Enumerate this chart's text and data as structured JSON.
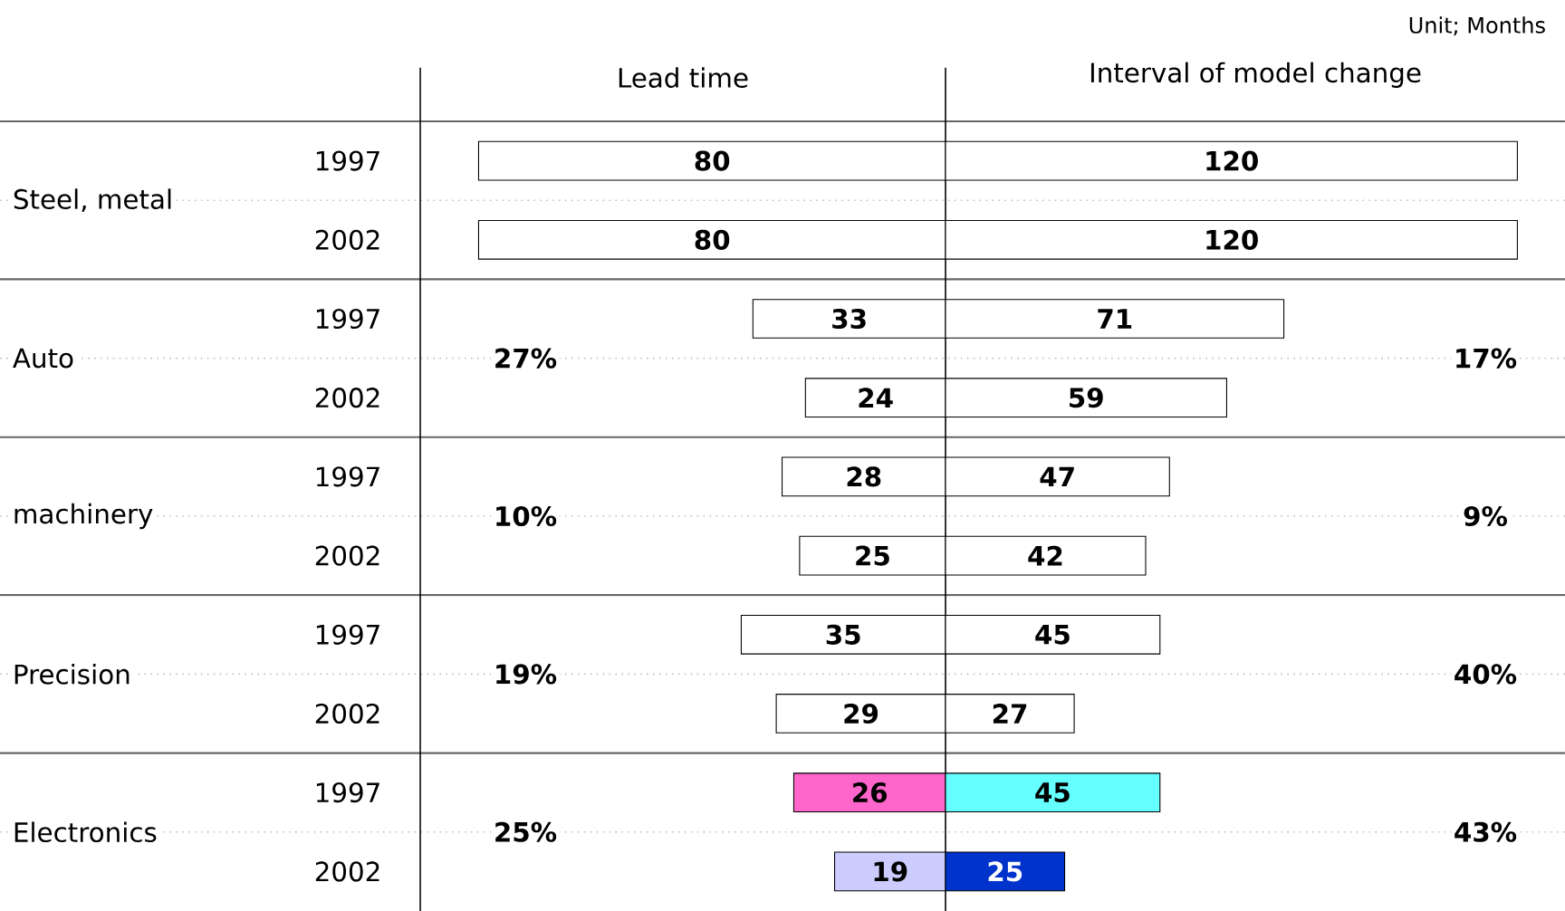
{
  "chart_data": [
    {
      "type": "bar",
      "orientation": "horizontal",
      "title": "Lead time",
      "categories": [
        "1997",
        "2002",
        "1997",
        "2002",
        "1997",
        "2002",
        "1997",
        "2002",
        "1997",
        "2002"
      ],
      "values": [
        80,
        80,
        33,
        24,
        28,
        25,
        35,
        29,
        26,
        19
      ],
      "colors": [
        "#ffffff",
        "#ffffff",
        "#ffffff",
        "#ffffff",
        "#ffffff",
        "#ffffff",
        "#ffffff",
        "#ffffff",
        "#ff66cc",
        "#ccccff"
      ],
      "xlim": [
        90,
        0
      ],
      "data_labels": true,
      "tick_labels": "y",
      "annotations": [
        "Steel, metal",
        "Auto",
        "machinery",
        "Precision",
        "Electronics",
        "27%",
        "10%",
        "19%",
        "25%"
      ]
    },
    {
      "type": "bar",
      "orientation": "horizontal",
      "title": "Interval of model change",
      "categories": [
        "1997",
        "2002",
        "1997",
        "2002",
        "1997",
        "2002",
        "1997",
        "2002",
        "1997",
        "2002"
      ],
      "values": [
        120,
        120,
        71,
        59,
        47,
        42,
        45,
        27,
        45,
        25
      ],
      "colors": [
        "#ffffff",
        "#ffffff",
        "#ffffff",
        "#ffffff",
        "#ffffff",
        "#ffffff",
        "#ffffff",
        "#ffffff",
        "#66ffff",
        "#0033cc"
      ],
      "xlim": [
        0,
        130
      ],
      "data_labels": true,
      "tick_labels": false,
      "annotations": [
        "Unit; Months",
        "17%",
        "9%",
        "40%",
        "43%"
      ]
    }
  ]
}
